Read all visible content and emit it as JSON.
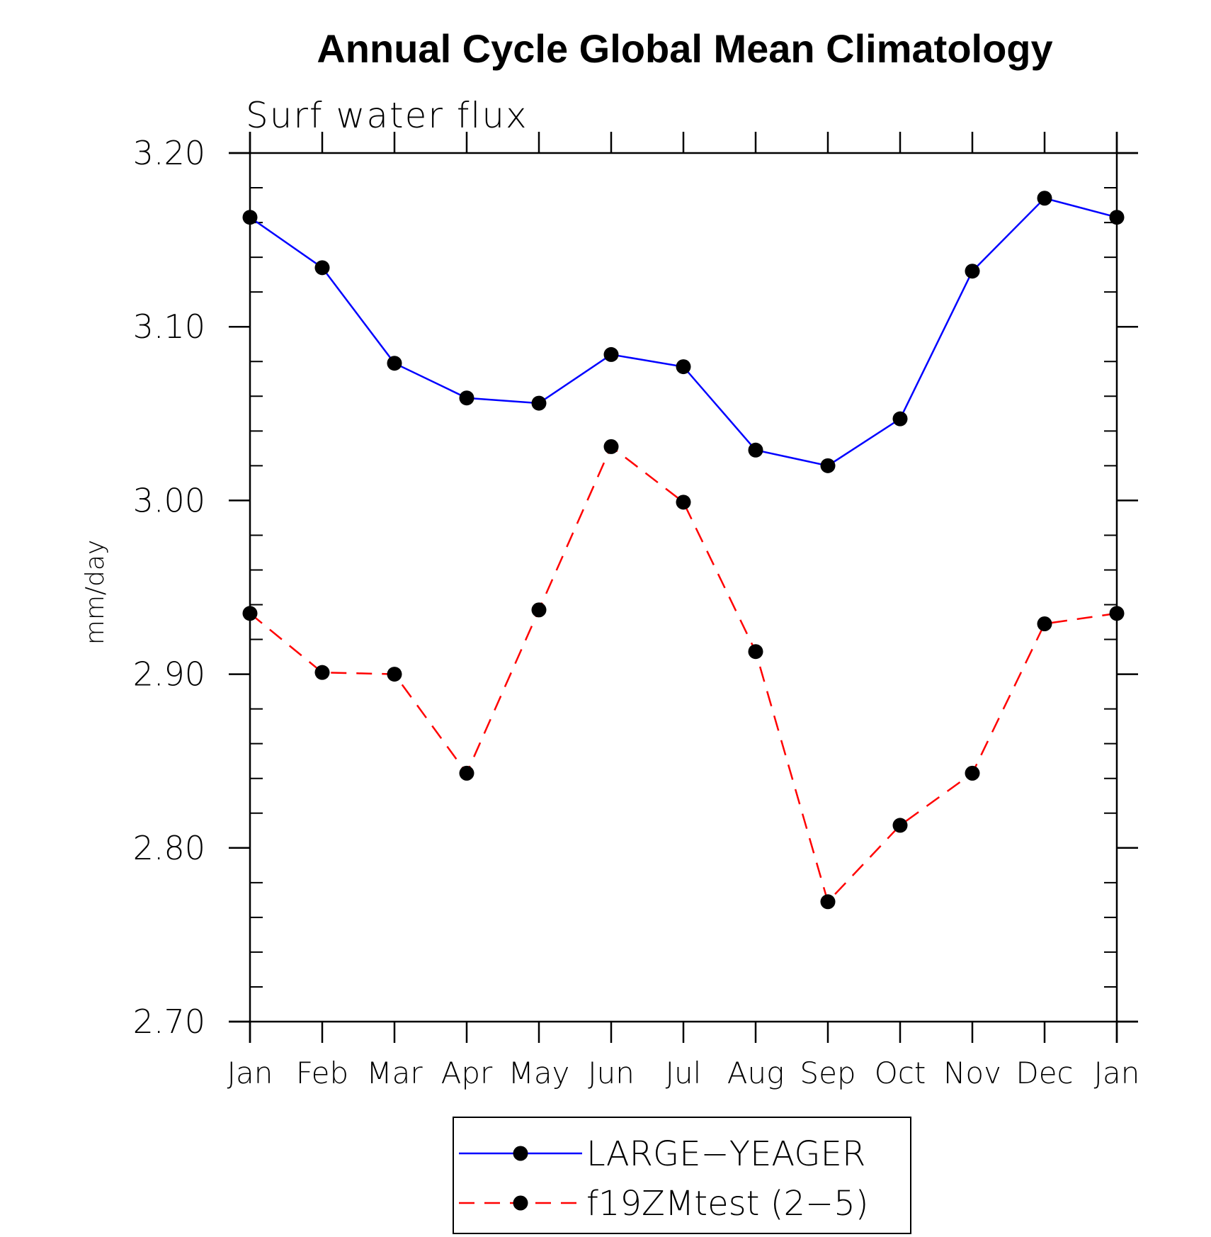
{
  "chart_data": {
    "type": "line",
    "title": "Annual Cycle Global Mean Climatology",
    "subtitle": "Surf water flux",
    "xlabel": "",
    "ylabel": "mm/day",
    "ylim": [
      2.7,
      3.2
    ],
    "yticks": [
      "2.70",
      "2.80",
      "2.90",
      "3.00",
      "3.10",
      "3.20"
    ],
    "ytick_values": [
      2.7,
      2.8,
      2.9,
      3.0,
      3.1,
      3.2
    ],
    "categories": [
      "Jan",
      "Feb",
      "Mar",
      "Apr",
      "May",
      "Jun",
      "Jul",
      "Aug",
      "Sep",
      "Oct",
      "Nov",
      "Dec",
      "Jan"
    ],
    "grid": false,
    "legend_position": "bottom-center",
    "series": [
      {
        "name": "LARGE−YEAGER",
        "color": "#0000ff",
        "dash": "solid",
        "marker": "filled-circle",
        "values": [
          3.163,
          3.134,
          3.079,
          3.059,
          3.056,
          3.084,
          3.077,
          3.029,
          3.02,
          3.047,
          3.132,
          3.174,
          3.163
        ]
      },
      {
        "name": "f19ZMtest (2−5)",
        "color": "#ff0000",
        "dash": "dashed",
        "marker": "filled-circle",
        "values": [
          2.935,
          2.901,
          2.9,
          2.843,
          2.937,
          3.031,
          2.999,
          2.913,
          2.769,
          2.813,
          2.843,
          2.929,
          2.935
        ]
      }
    ]
  }
}
